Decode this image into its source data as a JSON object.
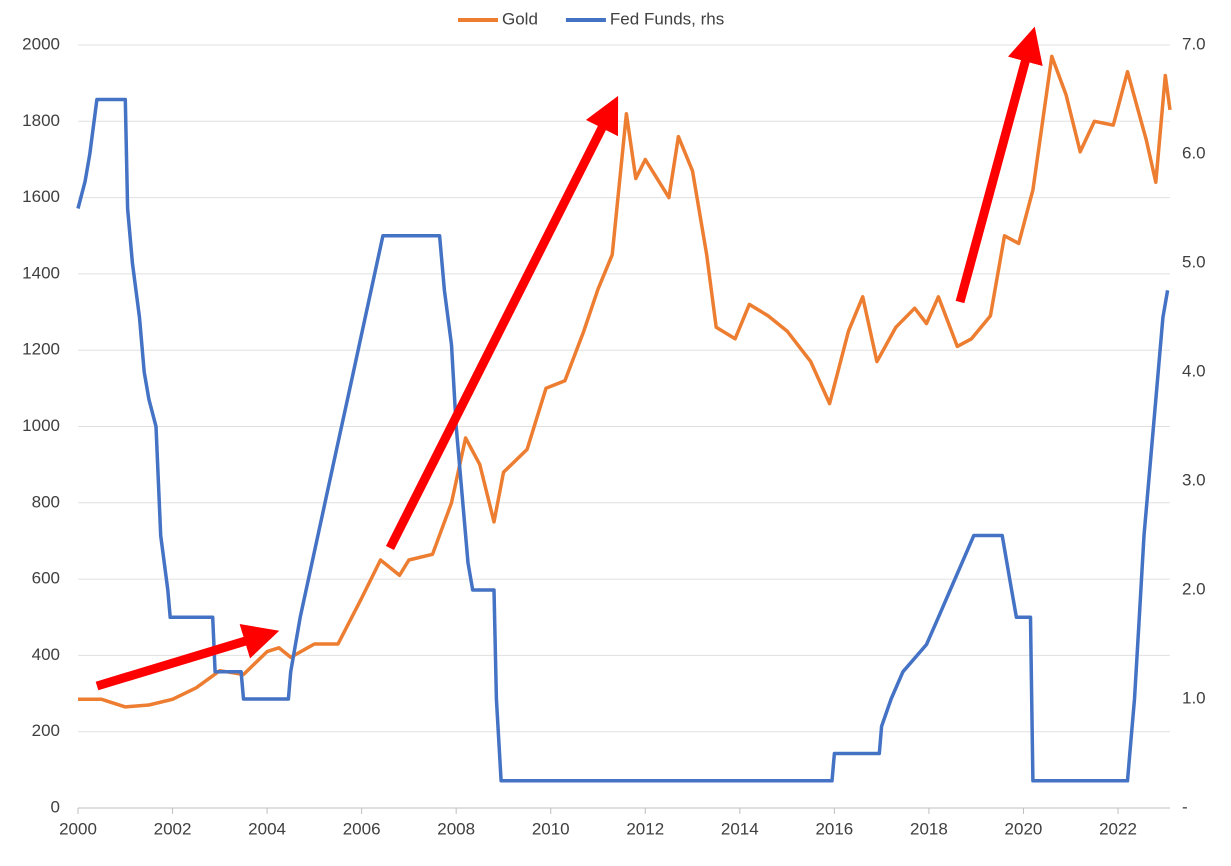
{
  "chart_data": {
    "type": "line",
    "series": [
      {
        "name": "Gold",
        "color": "#ed7d31",
        "x": [
          2000.0,
          2000.5,
          2001.0,
          2001.5,
          2002.0,
          2002.5,
          2003.0,
          2003.5,
          2004.0,
          2004.25,
          2004.5,
          2005.0,
          2005.5,
          2006.0,
          2006.4,
          2006.8,
          2007.0,
          2007.5,
          2007.9,
          2008.2,
          2008.5,
          2008.8,
          2009.0,
          2009.5,
          2009.9,
          2010.3,
          2010.7,
          2011.0,
          2011.3,
          2011.6,
          2011.8,
          2012.0,
          2012.5,
          2012.7,
          2013.0,
          2013.3,
          2013.5,
          2013.9,
          2014.2,
          2014.6,
          2015.0,
          2015.5,
          2015.9,
          2016.3,
          2016.6,
          2016.9,
          2017.3,
          2017.7,
          2017.95,
          2018.2,
          2018.6,
          2018.9,
          2019.3,
          2019.6,
          2019.9,
          2020.2,
          2020.6,
          2020.9,
          2021.2,
          2021.5,
          2021.9,
          2022.2,
          2022.6,
          2022.8,
          2023.0,
          2023.1
        ],
        "values": [
          285,
          285,
          265,
          270,
          285,
          315,
          360,
          350,
          410,
          420,
          395,
          430,
          430,
          550,
          650,
          610,
          650,
          665,
          800,
          970,
          900,
          750,
          880,
          940,
          1100,
          1120,
          1250,
          1360,
          1450,
          1820,
          1650,
          1700,
          1600,
          1760,
          1670,
          1450,
          1260,
          1230,
          1320,
          1290,
          1250,
          1170,
          1060,
          1250,
          1340,
          1170,
          1260,
          1310,
          1270,
          1340,
          1210,
          1230,
          1290,
          1500,
          1480,
          1620,
          1970,
          1870,
          1720,
          1800,
          1790,
          1930,
          1750,
          1640,
          1920,
          1830
        ]
      },
      {
        "name": "Fed Funds, rhs",
        "color": "#4472c4",
        "axis": "y2",
        "x": [
          2000.0,
          2000.15,
          2000.25,
          2000.4,
          2001.0,
          2001.05,
          2001.15,
          2001.3,
          2001.4,
          2001.5,
          2001.65,
          2001.75,
          2001.9,
          2001.95,
          2002.85,
          2002.9,
          2003.45,
          2003.5,
          2004.45,
          2004.5,
          2004.7,
          2004.95,
          2005.2,
          2005.45,
          2005.7,
          2005.95,
          2006.2,
          2006.45,
          2007.65,
          2007.75,
          2007.9,
          2008.0,
          2008.1,
          2008.25,
          2008.35,
          2008.8,
          2008.85,
          2008.95,
          2015.95,
          2016.0,
          2016.95,
          2017.0,
          2017.2,
          2017.45,
          2017.95,
          2018.2,
          2018.45,
          2018.7,
          2018.95,
          2019.55,
          2019.65,
          2019.75,
          2019.85,
          2020.15,
          2020.2,
          2022.2,
          2022.25,
          2022.35,
          2022.45,
          2022.55,
          2022.7,
          2022.85,
          2022.95,
          2023.05
        ],
        "values": [
          5.5,
          5.75,
          6.0,
          6.5,
          6.5,
          5.5,
          5.0,
          4.5,
          4.0,
          3.75,
          3.5,
          2.5,
          2.0,
          1.75,
          1.75,
          1.25,
          1.25,
          1.0,
          1.0,
          1.25,
          1.75,
          2.25,
          2.75,
          3.25,
          3.75,
          4.25,
          4.75,
          5.25,
          5.25,
          4.75,
          4.25,
          3.5,
          3.0,
          2.25,
          2.0,
          2.0,
          1.0,
          0.25,
          0.25,
          0.5,
          0.5,
          0.75,
          1.0,
          1.25,
          1.5,
          1.75,
          2.0,
          2.25,
          2.5,
          2.5,
          2.25,
          2.0,
          1.75,
          1.75,
          0.25,
          0.25,
          0.5,
          1.0,
          1.75,
          2.5,
          3.25,
          4.0,
          4.5,
          4.75
        ]
      }
    ],
    "xlim": [
      2000,
      2023.1
    ],
    "xticks": [
      2000,
      2002,
      2004,
      2006,
      2008,
      2010,
      2012,
      2014,
      2016,
      2018,
      2020,
      2022
    ],
    "ylim": [
      0,
      2000
    ],
    "yticks": [
      0,
      200,
      400,
      600,
      800,
      1000,
      1200,
      1400,
      1600,
      1800,
      2000
    ],
    "y2lim": [
      0,
      7
    ],
    "y2ticks": [
      {
        "value": 0,
        "label": "-"
      },
      {
        "value": 1,
        "label": "1.0"
      },
      {
        "value": 2,
        "label": "2.0"
      },
      {
        "value": 3,
        "label": "3.0"
      },
      {
        "value": 4,
        "label": "4.0"
      },
      {
        "value": 5,
        "label": "5.0"
      },
      {
        "value": 6,
        "label": "6.0"
      },
      {
        "value": 7,
        "label": "7.0"
      }
    ],
    "grid": true,
    "legend": "top"
  }
}
